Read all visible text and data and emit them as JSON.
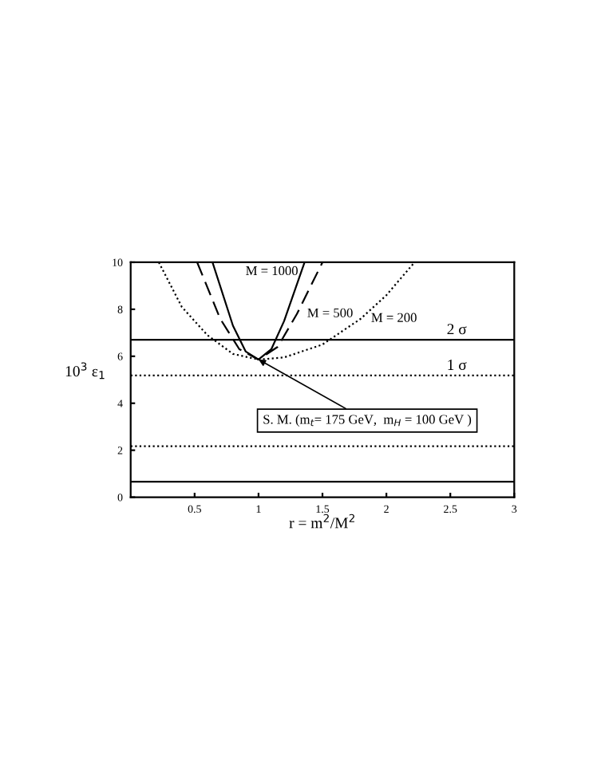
{
  "chart_data": {
    "type": "line",
    "xlabel": "r = m$^{2}$/M$^{2}$",
    "ylabel": "10$^{3}$ ε$_{1}$",
    "xlim": [
      0,
      3
    ],
    "xticks": [
      0.5,
      1,
      1.5,
      2,
      2.5,
      3
    ],
    "ylim": [
      0,
      10
    ],
    "yticks": [
      0,
      2,
      4,
      6,
      8,
      10
    ],
    "grid": false,
    "legend": false,
    "marker": "none",
    "series": [
      {
        "name": "M = 1000",
        "color": "#000000",
        "line_style": "solid",
        "x": [
          0.64,
          0.8,
          0.9,
          1.0,
          1.1,
          1.2,
          1.36
        ],
        "values": [
          10,
          7.3,
          6.2,
          5.86,
          6.3,
          7.5,
          10
        ]
      },
      {
        "name": "M = 500",
        "color": "#000000",
        "line_style": "dashed",
        "x": [
          0.52,
          0.7,
          0.85,
          1.0,
          1.15,
          1.3,
          1.5
        ],
        "values": [
          10,
          7.6,
          6.3,
          5.86,
          6.4,
          7.8,
          10
        ]
      },
      {
        "name": "M = 200",
        "color": "#000000",
        "line_style": "dotted",
        "x": [
          0.22,
          0.4,
          0.6,
          0.8,
          1.0,
          1.2,
          1.5,
          1.8,
          2.0,
          2.22
        ],
        "values": [
          10,
          8.1,
          6.9,
          6.1,
          5.86,
          5.95,
          6.5,
          7.6,
          8.6,
          10
        ]
      }
    ],
    "ref_lines": [
      {
        "axis": "y",
        "value": 6.7,
        "label": "2 σ",
        "line_style": "solid"
      },
      {
        "axis": "y",
        "value": 5.18,
        "label": "1 σ",
        "line_style": "dotted"
      },
      {
        "axis": "y",
        "value": 2.17,
        "line_style": "dotted"
      },
      {
        "axis": "y",
        "value": 0.66,
        "line_style": "solid"
      }
    ],
    "annotations": [
      {
        "text": "S. M. (m$_{t}$= 175 GeV,  m$_{H}$ = 100 GeV )",
        "x": 1.0,
        "y": 5.86
      }
    ]
  }
}
